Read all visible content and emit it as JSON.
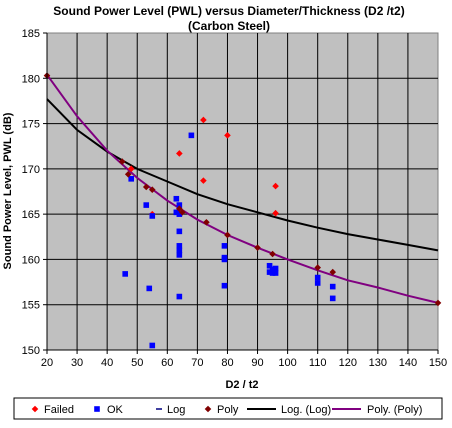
{
  "chart_data": {
    "type": "scatter",
    "title": "Sound Power Level (PWL) versus Diameter/Thickness (D2 /t2)",
    "subtitle": "(Carbon Steel)",
    "xlabel": "D2 / t2",
    "ylabel": "Sound Power Level, PWL (dB)",
    "xlim": [
      20,
      150
    ],
    "ylim": [
      150,
      185
    ],
    "x_ticks": [
      20,
      30,
      40,
      50,
      60,
      70,
      80,
      90,
      100,
      110,
      120,
      130,
      140,
      150
    ],
    "y_ticks": [
      150,
      155,
      160,
      165,
      170,
      175,
      180,
      185
    ],
    "grid": "on",
    "legend_position": "bottom",
    "series": [
      {
        "name": "Failed",
        "marker": "diamond",
        "color": "#ff0000",
        "x": [
          48,
          55,
          64,
          72,
          72,
          80,
          96,
          96
        ],
        "y": [
          170.0,
          165.0,
          171.7,
          175.4,
          168.7,
          173.7,
          168.1,
          165.1
        ]
      },
      {
        "name": "OK",
        "marker": "square",
        "color": "#0000ff",
        "x": [
          46,
          48,
          53,
          54,
          55,
          55,
          63,
          63,
          64,
          64,
          64,
          64,
          64,
          64,
          64,
          68,
          79,
          79,
          79,
          79,
          94,
          94,
          95,
          95,
          96,
          96,
          110,
          110,
          115,
          115
        ],
        "y": [
          158.4,
          168.9,
          166.0,
          156.8,
          164.8,
          150.5,
          166.7,
          165.2,
          163.1,
          161.5,
          161.0,
          160.5,
          166.0,
          155.9,
          165.0,
          173.7,
          161.5,
          160.2,
          160.0,
          157.1,
          159.3,
          158.6,
          158.9,
          158.5,
          159.0,
          158.5,
          158.0,
          157.4,
          157.0,
          155.7
        ]
      },
      {
        "name": "Log",
        "marker": "dash",
        "color": "#000080",
        "x": [],
        "y": []
      },
      {
        "name": "Poly",
        "marker": "diamond",
        "color": "#800000",
        "x": [
          20,
          45,
          47,
          53,
          55,
          64,
          65,
          73,
          80,
          90,
          95,
          110,
          115,
          150
        ],
        "y": [
          180.3,
          170.8,
          169.4,
          168.0,
          167.7,
          165.6,
          165.2,
          164.1,
          162.7,
          161.3,
          160.6,
          159.1,
          158.6,
          155.2
        ]
      },
      {
        "name": "Log. (Log)",
        "type": "line",
        "color": "#000000",
        "x": [
          20,
          30,
          40,
          50,
          60,
          70,
          80,
          90,
          100,
          110,
          120,
          130,
          140,
          150
        ],
        "y": [
          177.7,
          174.3,
          171.9,
          170.0,
          168.6,
          167.2,
          166.1,
          165.2,
          164.3,
          163.5,
          162.8,
          162.2,
          161.6,
          161.0
        ]
      },
      {
        "name": "Poly. (Poly)",
        "type": "line",
        "color": "#800080",
        "x": [
          20,
          30,
          40,
          50,
          60,
          70,
          80,
          90,
          100,
          110,
          120,
          130,
          140,
          150
        ],
        "y": [
          180.4,
          175.8,
          172.0,
          169.0,
          166.5,
          164.4,
          162.7,
          161.3,
          160.0,
          158.8,
          157.7,
          156.9,
          156.0,
          155.2
        ]
      }
    ]
  }
}
